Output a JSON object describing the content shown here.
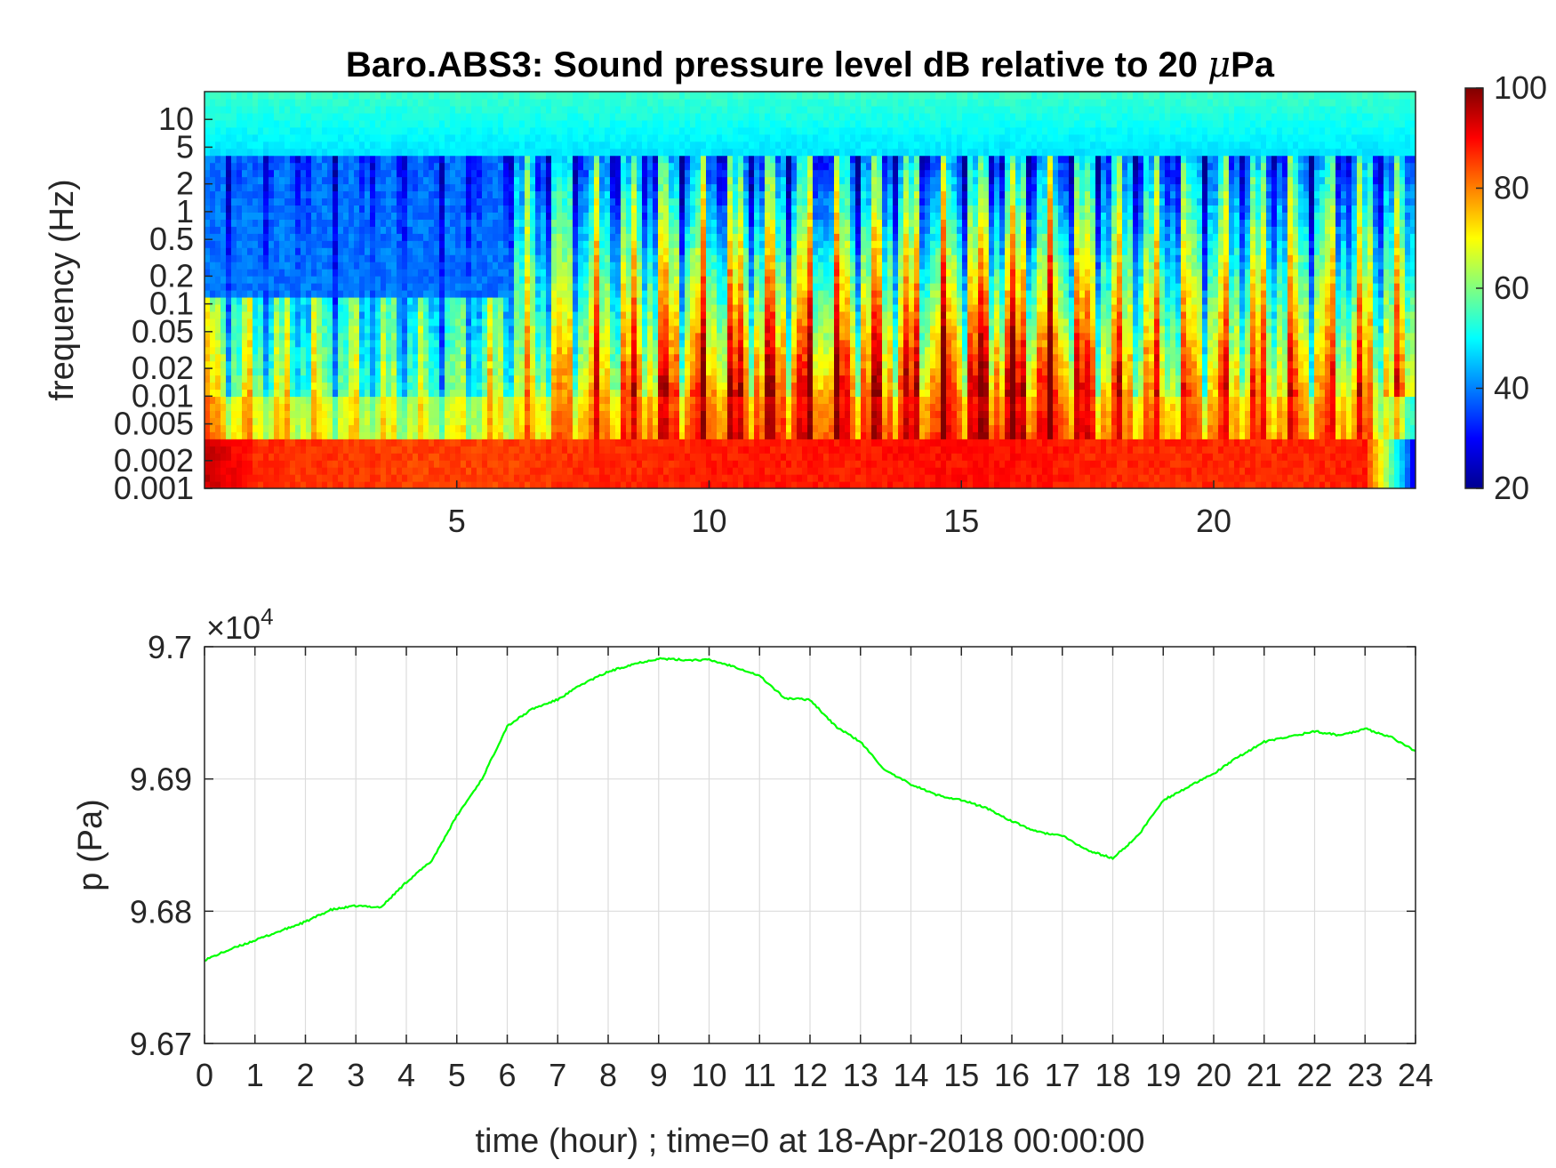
{
  "chart_data": [
    {
      "type": "heatmap",
      "title_main": "Baro.ABS3: Sound pressure level dB relative to 20 ",
      "title_mu": "μ",
      "title_end": "Pa",
      "ylabel": "frequency (Hz)",
      "xlabel": "",
      "x_range": [
        0,
        24
      ],
      "x_ticks": [
        "5",
        "10",
        "15",
        "20"
      ],
      "y_scale": "log",
      "y_range": [
        0.001,
        20
      ],
      "y_ticks": [
        "10",
        "5",
        "2",
        "1",
        "0.5",
        "0.2",
        "0.1",
        "0.05",
        "0.02",
        "0.01",
        "0.005",
        "0.002",
        "0.001"
      ],
      "colormap": "jet",
      "colorbar_range": [
        20,
        100
      ],
      "colorbar_ticks": [
        "100",
        "80",
        "60",
        "40",
        "20"
      ],
      "colorbar_colors": [
        "#00008f",
        "#0000ff",
        "#0080ff",
        "#00ffff",
        "#80ff80",
        "#ffff00",
        "#ff8000",
        "#ff0000",
        "#800000"
      ],
      "intensity_profile": {
        "time_hour": [
          0,
          1,
          2,
          3,
          4,
          5,
          6,
          7,
          8,
          9,
          10,
          11,
          12,
          13,
          14,
          15,
          16,
          17,
          18,
          19,
          20,
          21,
          22,
          23,
          24
        ],
        "level_at_0_01_Hz_dB": [
          66,
          62,
          60,
          58,
          56,
          55,
          63,
          72,
          76,
          82,
          84,
          85,
          86,
          85,
          84,
          88,
          90,
          88,
          78,
          75,
          76,
          77,
          77,
          76,
          74
        ],
        "level_at_0_001_Hz_dB": [
          95,
          87,
          86,
          86,
          85,
          85,
          85,
          86,
          87,
          87,
          88,
          88,
          88,
          88,
          89,
          89,
          89,
          88,
          87,
          87,
          87,
          87,
          87,
          88,
          30
        ]
      }
    },
    {
      "type": "line",
      "ylabel": "p (Pa)",
      "xlabel": "time (hour) ; time=0 at 18-Apr-2018 00:00:00",
      "exponent_label": "×10",
      "exponent_power": "4",
      "x_range": [
        0,
        24
      ],
      "x_ticks": [
        "0",
        "1",
        "2",
        "3",
        "4",
        "5",
        "6",
        "7",
        "8",
        "9",
        "10",
        "11",
        "12",
        "13",
        "14",
        "15",
        "16",
        "17",
        "18",
        "19",
        "20",
        "21",
        "22",
        "23",
        "24"
      ],
      "y_range": [
        96700,
        97000
      ],
      "y_ticks": [
        "9.7",
        "9.69",
        "9.68",
        "9.67"
      ],
      "grid": true,
      "series": [
        {
          "color": "#00ff00",
          "x": [
            0,
            0.5,
            1,
            1.5,
            2,
            2.5,
            3,
            3.5,
            4,
            4.5,
            5,
            5.5,
            6,
            6.5,
            7,
            7.5,
            8,
            8.5,
            9,
            9.5,
            10,
            10.5,
            11,
            11.5,
            12,
            12.5,
            13,
            13.5,
            14,
            14.5,
            15,
            15.5,
            16,
            16.5,
            17,
            17.5,
            18,
            18.5,
            19,
            19.5,
            20,
            20.5,
            21,
            21.5,
            22,
            22.5,
            23,
            23.5,
            24
          ],
          "y": [
            96763,
            96771,
            96778,
            96785,
            96792,
            96801,
            96804,
            96803,
            96822,
            96838,
            96872,
            96900,
            96940,
            96953,
            96960,
            96972,
            96981,
            96987,
            96991,
            96990,
            96990,
            96985,
            96978,
            96961,
            96960,
            96940,
            96928,
            96906,
            96896,
            96888,
            96884,
            96878,
            96868,
            96860,
            96857,
            96846,
            96840,
            96857,
            96884,
            96894,
            96904,
            96917,
            96928,
            96932,
            96936,
            96933,
            96938,
            96932,
            96921
          ]
        }
      ]
    }
  ]
}
